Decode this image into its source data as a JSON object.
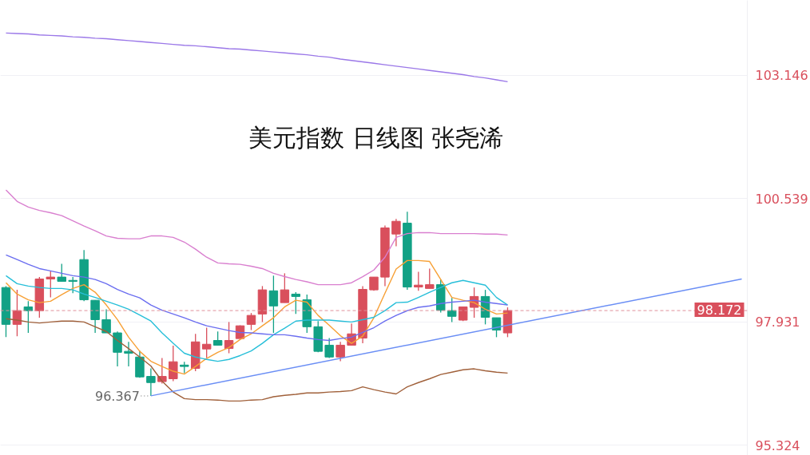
{
  "chart_data": {
    "type": "candlestick",
    "title": "美元指数 日线图 张尧浠",
    "categories": [
      null,
      null,
      null,
      null,
      null,
      null,
      null,
      null,
      null,
      null,
      null,
      null,
      null,
      null,
      null,
      null,
      null,
      null,
      null,
      null,
      null,
      null,
      null,
      null,
      null,
      null,
      null,
      null,
      null,
      null,
      null,
      null,
      null,
      null,
      null,
      null,
      null,
      null,
      null,
      null,
      null,
      null,
      null,
      null,
      null,
      null,
      null,
      null,
      null,
      null,
      null,
      null,
      null,
      null,
      null,
      null,
      null,
      null,
      null,
      null,
      null,
      null,
      null,
      null,
      null,
      null,
      null
    ],
    "ohlc": [
      [
        98.66,
        98.69,
        97.61,
        97.88
      ],
      [
        97.88,
        98.61,
        97.63,
        98.17
      ],
      [
        98.25,
        98.37,
        97.7,
        98.17
      ],
      [
        98.17,
        98.88,
        98.02,
        98.84
      ],
      [
        98.84,
        99.01,
        98.45,
        98.88
      ],
      [
        98.88,
        99.16,
        98.79,
        98.79
      ],
      [
        98.81,
        98.88,
        98.54,
        98.79
      ],
      [
        99.25,
        99.45,
        98.37,
        98.4
      ],
      [
        98.39,
        98.39,
        97.7,
        97.98
      ],
      [
        97.98,
        98.2,
        97.7,
        97.7
      ],
      [
        97.7,
        97.73,
        96.99,
        97.29
      ],
      [
        97.31,
        97.51,
        96.99,
        97.27
      ],
      [
        97.19,
        97.32,
        96.75,
        96.77
      ],
      [
        96.78,
        96.95,
        96.367,
        96.65
      ],
      [
        96.67,
        97.17,
        96.63,
        96.78
      ],
      [
        96.73,
        97.43,
        96.68,
        97.09
      ],
      [
        97.02,
        97.09,
        96.85,
        96.99
      ],
      [
        96.95,
        97.68,
        96.89,
        97.51
      ],
      [
        97.36,
        97.81,
        97.17,
        97.46
      ],
      [
        97.54,
        97.73,
        97.44,
        97.44
      ],
      [
        97.37,
        97.93,
        97.27,
        97.54
      ],
      [
        97.58,
        97.86,
        97.58,
        97.85
      ],
      [
        97.88,
        98.12,
        97.76,
        98.07
      ],
      [
        98.1,
        98.69,
        97.93,
        98.61
      ],
      [
        98.59,
        98.91,
        97.7,
        98.27
      ],
      [
        98.34,
        98.96,
        98.34,
        98.61
      ],
      [
        98.52,
        98.56,
        98.1,
        98.47
      ],
      [
        98.4,
        98.51,
        97.7,
        97.83
      ],
      [
        97.83,
        97.95,
        97.29,
        97.31
      ],
      [
        97.44,
        97.59,
        97.17,
        97.19
      ],
      [
        97.19,
        97.51,
        97.1,
        97.44
      ],
      [
        97.44,
        97.9,
        97.44,
        97.68
      ],
      [
        97.59,
        98.69,
        97.48,
        98.62
      ],
      [
        98.61,
        98.88,
        98.59,
        98.88
      ],
      [
        98.88,
        99.97,
        98.69,
        99.92
      ],
      [
        99.79,
        100.11,
        99.53,
        100.06
      ],
      [
        100.02,
        100.26,
        98.61,
        98.67
      ],
      [
        98.67,
        98.99,
        98.59,
        98.71
      ],
      [
        98.64,
        99.06,
        98.64,
        98.72
      ],
      [
        98.72,
        98.83,
        98.13,
        98.18
      ],
      [
        98.17,
        98.44,
        97.93,
        98.05
      ],
      [
        97.97,
        98.25,
        97.95,
        98.25
      ],
      [
        98.24,
        98.66,
        98.02,
        98.47
      ],
      [
        98.47,
        98.61,
        97.88,
        98.03
      ],
      [
        98.02,
        98.02,
        97.61,
        97.76
      ],
      [
        97.7,
        98.24,
        97.61,
        98.172
      ],
      null,
      null,
      null,
      null,
      null,
      null,
      null,
      null,
      null,
      null,
      null,
      null,
      null,
      null,
      null,
      null,
      null,
      null,
      null,
      null,
      null
    ],
    "colors": [
      "#12a185",
      "#d94f5c",
      "#12a185",
      "#d94f5c",
      "#d94f5c",
      "#12a185",
      "#12a185",
      "#12a185",
      "#12a185",
      "#12a185",
      "#12a185",
      "#12a185",
      "#12a185",
      "#12a185",
      "#d94f5c",
      "#d94f5c",
      "#12a185",
      "#d94f5c",
      "#d94f5c",
      "#12a185",
      "#d94f5c",
      "#d94f5c",
      "#d94f5c",
      "#d94f5c",
      "#12a185",
      "#d94f5c",
      "#12a185",
      "#12a185",
      "#12a185",
      "#12a185",
      "#d94f5c",
      "#d94f5c",
      "#d94f5c",
      "#d94f5c",
      "#d94f5c",
      "#d94f5c",
      "#12a185",
      "#d94f5c",
      "#d94f5c",
      "#12a185",
      "#12a185",
      "#d94f5c",
      "#d94f5c",
      "#12a185",
      "#12a185",
      "#d94f5c",
      null,
      null,
      null,
      null,
      null,
      null,
      null,
      null,
      null,
      null,
      null,
      null,
      null,
      null,
      null,
      null,
      null,
      null,
      null,
      null,
      null
    ],
    "series": [
      {
        "type": "line",
        "color": "#f7a035",
        "values": [
          98.76,
          98.52,
          98.4,
          98.34,
          98.37,
          98.51,
          98.64,
          98.72,
          98.56,
          98.29,
          97.98,
          97.61,
          97.31,
          97.1,
          96.99,
          96.89,
          96.83,
          96.99,
          97.16,
          97.29,
          97.39,
          97.56,
          97.68,
          97.85,
          98.02,
          98.25,
          98.39,
          98.35,
          98.07,
          97.86,
          97.64,
          97.48,
          97.63,
          98.02,
          98.54,
          99.05,
          99.23,
          99.23,
          99.21,
          98.83,
          98.45,
          98.39,
          98.34,
          98.2,
          98.1,
          98.12,
          null,
          null,
          null,
          null,
          null,
          null,
          null,
          null,
          null,
          null,
          null,
          null,
          null,
          null,
          null,
          null,
          null,
          null,
          null,
          null,
          null
        ]
      },
      {
        "type": "line",
        "color": "#27bfd9",
        "values": [
          98.91,
          98.74,
          98.69,
          98.66,
          98.64,
          98.64,
          98.61,
          98.52,
          98.45,
          98.37,
          98.29,
          98.2,
          98.08,
          97.95,
          97.7,
          97.48,
          97.27,
          97.19,
          97.14,
          97.1,
          97.14,
          97.22,
          97.32,
          97.48,
          97.66,
          97.8,
          97.95,
          97.97,
          97.97,
          97.97,
          97.95,
          97.93,
          97.98,
          98.03,
          98.17,
          98.34,
          98.35,
          98.45,
          98.56,
          98.66,
          98.76,
          98.81,
          98.76,
          98.71,
          98.45,
          98.29,
          null,
          null,
          null,
          null,
          null,
          null,
          null,
          null,
          null,
          null,
          null,
          null,
          null,
          null,
          null,
          null,
          null,
          null,
          null,
          null,
          null
        ]
      },
      {
        "type": "line",
        "color": "#6b6ef0",
        "values": [
          99.35,
          99.25,
          99.15,
          99.06,
          99.01,
          98.96,
          98.91,
          98.88,
          98.83,
          98.74,
          98.62,
          98.52,
          98.44,
          98.29,
          98.18,
          98.1,
          98.02,
          97.93,
          97.85,
          97.8,
          97.75,
          97.71,
          97.7,
          97.68,
          97.66,
          97.66,
          97.63,
          97.59,
          97.56,
          97.54,
          97.58,
          97.61,
          97.71,
          97.81,
          97.95,
          98.07,
          98.17,
          98.24,
          98.27,
          98.32,
          98.35,
          98.37,
          98.39,
          98.35,
          98.32,
          98.29,
          null,
          null,
          null,
          null,
          null,
          null,
          null,
          null,
          null,
          null,
          null,
          null,
          null,
          null,
          null,
          null,
          null,
          null,
          null,
          null,
          null
        ]
      },
      {
        "type": "line",
        "color": "#d97fcf",
        "values": [
          100.72,
          100.48,
          100.36,
          100.29,
          100.24,
          100.18,
          100.07,
          99.96,
          99.86,
          99.75,
          99.7,
          99.69,
          99.69,
          99.75,
          99.75,
          99.72,
          99.62,
          99.47,
          99.3,
          99.18,
          99.16,
          99.15,
          99.11,
          99.06,
          98.96,
          98.89,
          98.83,
          98.78,
          98.72,
          98.72,
          98.72,
          98.76,
          98.89,
          99.03,
          99.3,
          99.72,
          99.8,
          99.82,
          99.82,
          99.8,
          99.8,
          99.8,
          99.8,
          99.79,
          99.79,
          99.77,
          null,
          null,
          null,
          null,
          null,
          null,
          null,
          null,
          null,
          null,
          null,
          null,
          null,
          null,
          null,
          null,
          null,
          null,
          null,
          null,
          null
        ]
      },
      {
        "type": "line",
        "color": "#a0603a",
        "values": [
          98.0,
          97.97,
          97.93,
          97.91,
          97.93,
          97.95,
          97.95,
          97.93,
          97.83,
          97.73,
          97.54,
          97.37,
          97.19,
          97.0,
          96.68,
          96.45,
          96.31,
          96.29,
          96.29,
          96.28,
          96.26,
          96.26,
          96.28,
          96.29,
          96.35,
          96.38,
          96.4,
          96.43,
          96.43,
          96.45,
          96.46,
          96.48,
          96.56,
          96.5,
          96.45,
          96.41,
          96.56,
          96.65,
          96.73,
          96.82,
          96.87,
          96.92,
          96.94,
          96.9,
          96.87,
          96.85,
          null,
          null,
          null,
          null,
          null,
          null,
          null,
          null,
          null,
          null,
          null,
          null,
          null,
          null,
          null,
          null,
          null,
          null,
          null,
          null,
          null
        ]
      },
      {
        "type": "line",
        "color": "#9b78e8",
        "values": [
          104.04,
          104.03,
          104.02,
          104.0,
          103.99,
          103.98,
          103.96,
          103.95,
          103.93,
          103.92,
          103.9,
          103.88,
          103.86,
          103.84,
          103.82,
          103.8,
          103.78,
          103.77,
          103.75,
          103.73,
          103.71,
          103.7,
          103.68,
          103.66,
          103.64,
          103.62,
          103.6,
          103.58,
          103.55,
          103.53,
          103.49,
          103.46,
          103.43,
          103.4,
          103.37,
          103.34,
          103.31,
          103.28,
          103.25,
          103.22,
          103.19,
          103.16,
          103.12,
          103.09,
          103.05,
          103.01,
          null,
          null,
          null,
          null,
          null,
          null,
          null,
          null,
          null,
          null,
          null,
          null,
          null,
          null,
          null,
          null,
          null,
          null,
          null,
          null,
          null
        ]
      },
      {
        "type": "line",
        "color": "#6a8ef5",
        "values": [
          null,
          null,
          null,
          null,
          null,
          null,
          null,
          null,
          null,
          null,
          null,
          null,
          null,
          96.37,
          null,
          null,
          null,
          null,
          null,
          null,
          null,
          null,
          null,
          null,
          null,
          null,
          null,
          null,
          null,
          null,
          null,
          null,
          null,
          null,
          null,
          null,
          null,
          null,
          null,
          null,
          null,
          null,
          null,
          null,
          null,
          null,
          null,
          null,
          null,
          null,
          null,
          null,
          null,
          null,
          null,
          null,
          null,
          null,
          null,
          null,
          null,
          null,
          null,
          null,
          null,
          null,
          98.84
        ]
      }
    ],
    "ylim": [
      95.11,
      104.73
    ],
    "yticks": [
      95.324,
      97.931,
      100.539,
      103.146
    ],
    "grid": "y",
    "ref_lines": [
      {
        "axis": "y",
        "value": 98.172,
        "label": "98.172",
        "color": "#e0909a",
        "line_style": "dashed"
      }
    ],
    "annotations": [
      "96.367"
    ]
  }
}
